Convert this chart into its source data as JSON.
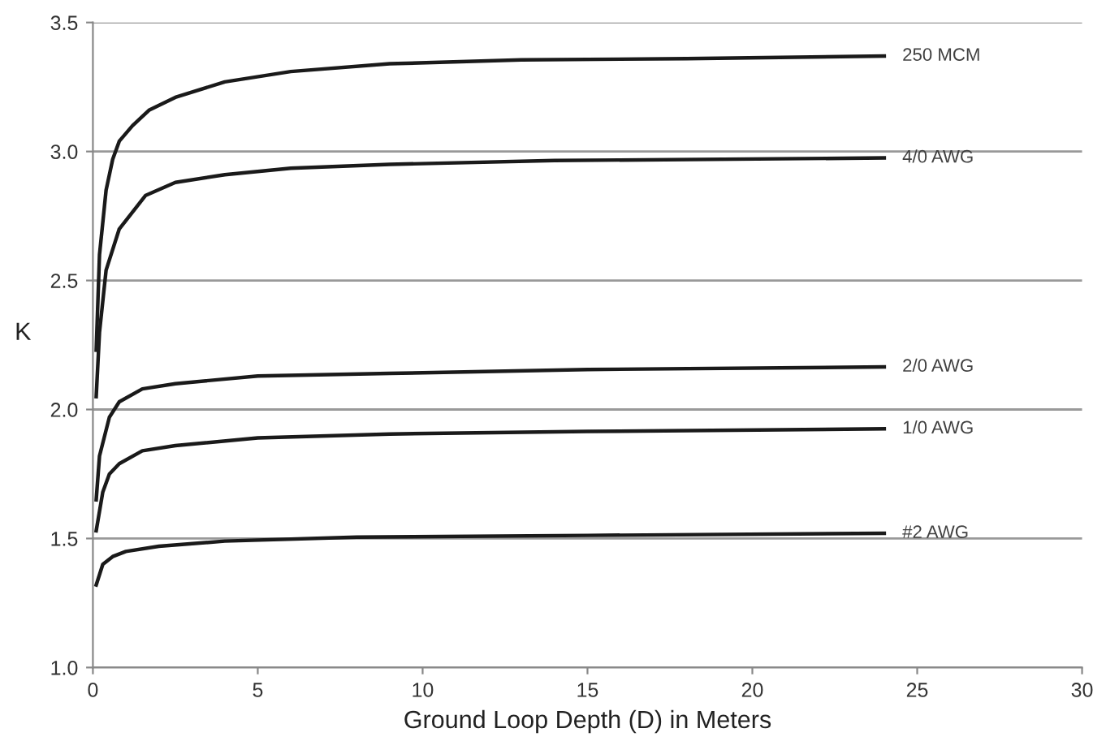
{
  "chart_data": {
    "type": "line",
    "xlabel": "Ground Loop Depth (D) in Meters",
    "ylabel": "K",
    "xlim": [
      0,
      30
    ],
    "xticks": [
      0,
      5,
      10,
      15,
      20,
      25,
      30
    ],
    "ylim": [
      1.0,
      3.5
    ],
    "yticks": [
      {
        "value": 1.0,
        "label": "1.0"
      },
      {
        "value": 1.5,
        "label": "1.5"
      },
      {
        "value": 2.0,
        "label": "2.0"
      },
      {
        "value": 2.5,
        "label": "2.5"
      },
      {
        "value": 3.0,
        "label": "3.0"
      },
      {
        "value": 3.5,
        "label": "3.5"
      }
    ],
    "grid": "y",
    "legend": false,
    "marker": "none",
    "line_style": "solid",
    "series": [
      {
        "name": "250 MCM",
        "color": "#1a1a1a",
        "x": [
          0.1,
          0.2,
          0.4,
          0.6,
          0.8,
          1.2,
          1.7,
          2.5,
          4,
          6,
          9,
          13,
          18,
          24
        ],
        "values": [
          2.23,
          2.6,
          2.85,
          2.97,
          3.04,
          3.1,
          3.16,
          3.21,
          3.27,
          3.31,
          3.34,
          3.355,
          3.36,
          3.37
        ]
      },
      {
        "name": "4/0 AWG",
        "color": "#1a1a1a",
        "x": [
          0.1,
          0.2,
          0.4,
          0.8,
          1.6,
          2.5,
          4,
          6,
          9,
          14,
          24
        ],
        "values": [
          2.05,
          2.3,
          2.54,
          2.7,
          2.83,
          2.88,
          2.91,
          2.935,
          2.95,
          2.965,
          2.975
        ]
      },
      {
        "name": "2/0 AWG",
        "color": "#1a1a1a",
        "x": [
          0.1,
          0.2,
          0.5,
          0.8,
          1.5,
          2.5,
          5,
          9,
          15,
          24
        ],
        "values": [
          1.65,
          1.82,
          1.97,
          2.03,
          2.08,
          2.1,
          2.13,
          2.14,
          2.155,
          2.165
        ]
      },
      {
        "name": "1/0 AWG",
        "color": "#1a1a1a",
        "x": [
          0.1,
          0.3,
          0.5,
          0.8,
          1.5,
          2.5,
          5,
          9,
          15,
          24
        ],
        "values": [
          1.53,
          1.68,
          1.75,
          1.79,
          1.84,
          1.86,
          1.89,
          1.905,
          1.915,
          1.925
        ]
      },
      {
        "name": "#2 AWG",
        "color": "#1a1a1a",
        "x": [
          0.1,
          0.3,
          0.6,
          1.0,
          2,
          4,
          8,
          15,
          24
        ],
        "values": [
          1.32,
          1.4,
          1.43,
          1.45,
          1.47,
          1.49,
          1.505,
          1.512,
          1.52
        ]
      }
    ]
  }
}
